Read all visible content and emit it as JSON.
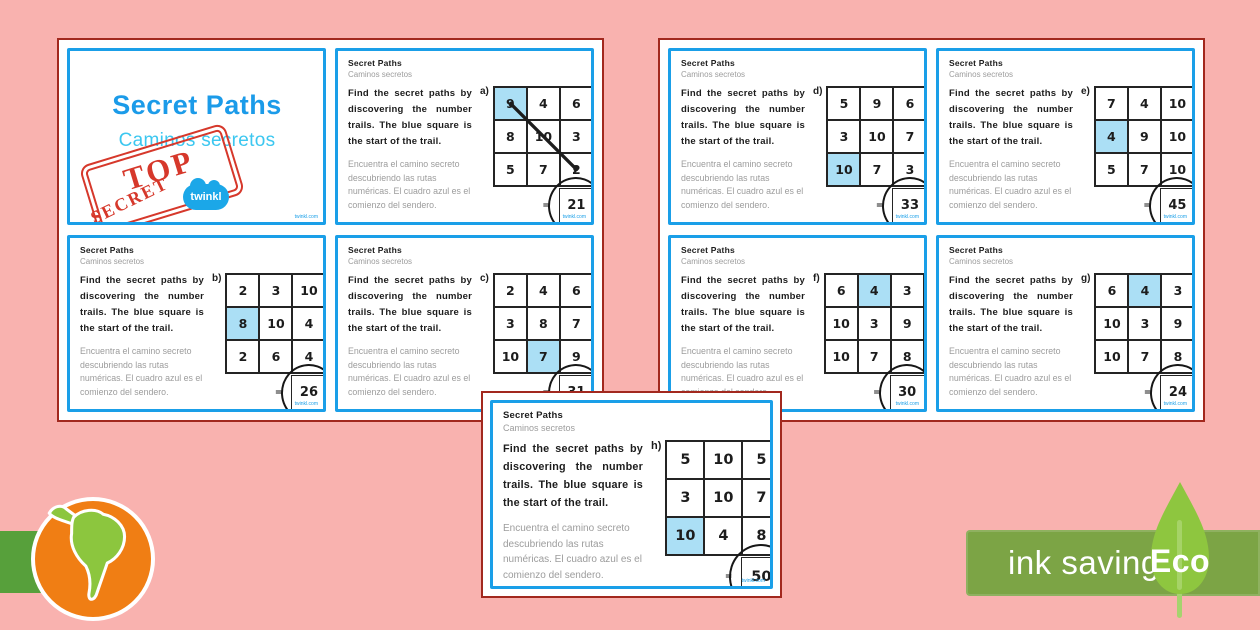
{
  "title_card": {
    "title": "Secret Paths",
    "subtitle": "Caminos secretos",
    "stamp": {
      "line1": "TOP",
      "line2": "SECRET"
    },
    "logo_text": "twinkl"
  },
  "card_common": {
    "header": "Secret Paths",
    "subheader": "Caminos secretos",
    "instructions_en": "Find the secret paths by discovering the number trails. The blue square is the start of the trail.",
    "instructions_es": "Encuentra el camino secreto descubriendo las rutas numéricas. El cuadro azul es el comienzo del sendero.",
    "equals": "=",
    "watermark": "twinkl.com"
  },
  "cards": [
    {
      "label": "a)",
      "grid": [
        [
          9,
          4,
          6
        ],
        [
          8,
          10,
          3
        ],
        [
          5,
          7,
          2
        ]
      ],
      "blue_cell": [
        0,
        0
      ],
      "answer": 21,
      "drawn_line": {
        "from": [
          0,
          0
        ],
        "to": [
          2,
          2
        ]
      }
    },
    {
      "label": "b)",
      "grid": [
        [
          2,
          3,
          10
        ],
        [
          8,
          10,
          4
        ],
        [
          2,
          6,
          4
        ]
      ],
      "blue_cell": [
        1,
        0
      ],
      "answer": 26
    },
    {
      "label": "c)",
      "grid": [
        [
          2,
          4,
          6
        ],
        [
          3,
          8,
          7
        ],
        [
          10,
          7,
          9
        ]
      ],
      "blue_cell": [
        2,
        1
      ],
      "answer": 31
    },
    {
      "label": "d)",
      "grid": [
        [
          5,
          9,
          6
        ],
        [
          3,
          10,
          7
        ],
        [
          10,
          7,
          3
        ]
      ],
      "blue_cell": [
        2,
        0
      ],
      "answer": 33
    },
    {
      "label": "e)",
      "grid": [
        [
          7,
          4,
          10
        ],
        [
          4,
          9,
          10
        ],
        [
          5,
          7,
          10
        ]
      ],
      "blue_cell": [
        1,
        0
      ],
      "answer": 45
    },
    {
      "label": "f)",
      "grid": [
        [
          6,
          4,
          3
        ],
        [
          10,
          3,
          9
        ],
        [
          10,
          7,
          8
        ]
      ],
      "blue_cell": [
        0,
        1
      ],
      "answer": 30
    },
    {
      "label": "g)",
      "grid": [
        [
          6,
          4,
          3
        ],
        [
          10,
          3,
          9
        ],
        [
          10,
          7,
          8
        ]
      ],
      "blue_cell": [
        0,
        1
      ],
      "answer": 24
    },
    {
      "label": "h)",
      "grid": [
        [
          5,
          10,
          5
        ],
        [
          3,
          10,
          7
        ],
        [
          10,
          4,
          8
        ]
      ],
      "blue_cell": [
        2,
        0
      ],
      "answer": 50
    }
  ],
  "footer": {
    "eco_text": "ink saving",
    "eco_leaf_text": "Eco"
  },
  "colors": {
    "pink-bg": "#f9b2af",
    "page-border-red": "#a2281e",
    "blue-border": "#1a9fe8",
    "blue-cell": "#abdff5",
    "title-blue": "#1b9be9",
    "subtitle-cyan": "#3cc7f0",
    "stamp-red": "#d6382b",
    "logo-blue": "#1ba7e8",
    "gray-text": "#9c9c9c",
    "eco-green": "#7ca445",
    "leaf-green": "#8ec63f",
    "band-green": "#57a03b",
    "globe-orange": "#f07e14",
    "map-green": "#8cc63e"
  }
}
